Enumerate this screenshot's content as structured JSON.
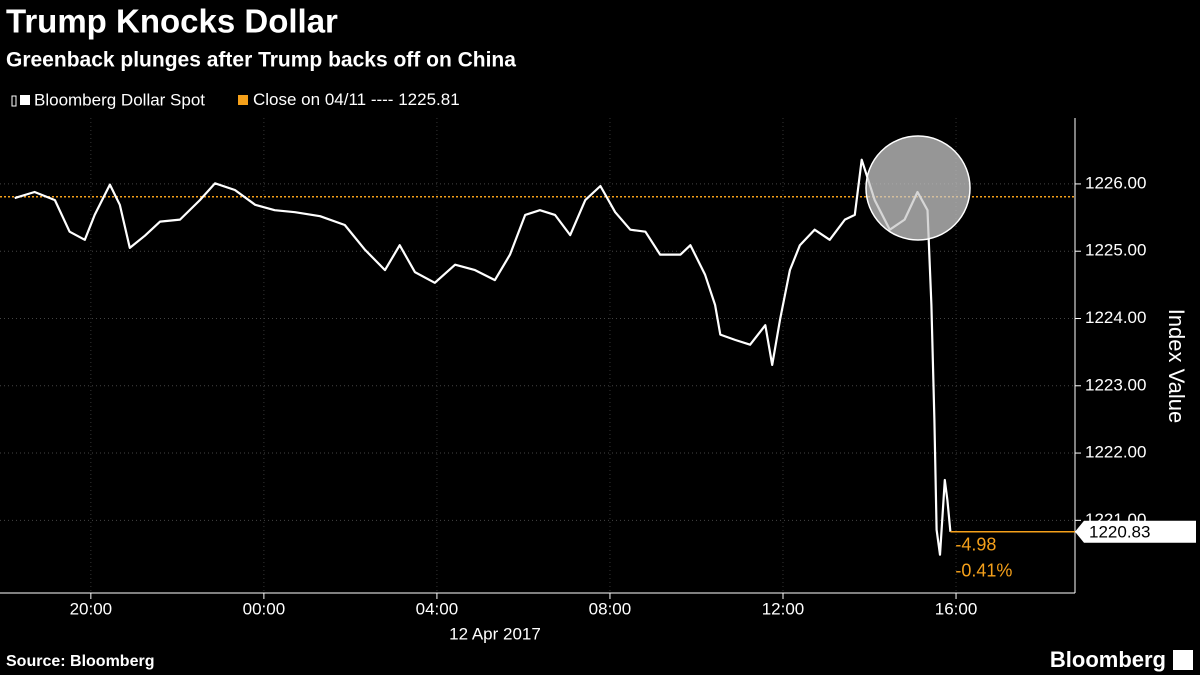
{
  "chart_data": {
    "type": "line",
    "title": "Trump Knocks Dollar",
    "subtitle": "Greenback plunges after Trump backs off on China",
    "y_axis_label": "Index Value",
    "x_sublabel": "12 Apr 2017",
    "source": "Source: Bloomberg",
    "brand": "Bloomberg",
    "annotations": [
      "-4.98",
      "-0.41%"
    ],
    "grid": true,
    "xlim": [
      17.9,
      42.75
    ],
    "xticks": [
      {
        "value": 20,
        "label": "20:00"
      },
      {
        "value": 24,
        "label": "00:00"
      },
      {
        "value": 28,
        "label": "04:00"
      },
      {
        "value": 32,
        "label": "08:00"
      },
      {
        "value": 36,
        "label": "12:00"
      },
      {
        "value": 40,
        "label": "16:00"
      }
    ],
    "ylim": [
      1219.92,
      1226.98
    ],
    "yticks": [
      {
        "value": 1221,
        "label": "1221.00"
      },
      {
        "value": 1222,
        "label": "1222.00"
      },
      {
        "value": 1223,
        "label": "1223.00"
      },
      {
        "value": 1224,
        "label": "1224.00"
      },
      {
        "value": 1225,
        "label": "1225.00"
      },
      {
        "value": 1226,
        "label": "1226.00"
      }
    ],
    "reference_line": {
      "name": "Close on 04/11 ----",
      "value": 1225.81,
      "color": "#f5a01a"
    },
    "x": [
      18.24,
      18.7,
      19.17,
      19.51,
      19.86,
      20.09,
      20.44,
      20.67,
      20.9,
      21.25,
      21.6,
      22.06,
      22.52,
      22.87,
      23.33,
      23.8,
      24.25,
      24.72,
      25.3,
      25.87,
      26.34,
      26.8,
      27.14,
      27.49,
      27.95,
      28.42,
      28.88,
      29.34,
      29.69,
      30.04,
      30.38,
      30.73,
      31.08,
      31.43,
      31.78,
      32.12,
      32.47,
      32.82,
      33.16,
      33.63,
      33.86,
      34.2,
      34.43,
      34.55,
      34.9,
      35.24,
      35.59,
      35.75,
      35.93,
      36.16,
      36.39,
      36.73,
      37.08,
      37.43,
      37.66,
      37.82,
      38.12,
      38.47,
      38.81,
      39.11,
      39.34,
      39.43,
      39.5,
      39.55,
      39.63,
      39.74,
      39.8,
      39.87
    ],
    "series": [
      {
        "name": "Bloomberg Dollar Spot",
        "color": "#ffffff",
        "values": [
          1225.79,
          1225.88,
          1225.76,
          1225.29,
          1225.17,
          1225.54,
          1225.99,
          1225.69,
          1225.05,
          1225.23,
          1225.44,
          1225.47,
          1225.76,
          1226.01,
          1225.91,
          1225.69,
          1225.61,
          1225.58,
          1225.52,
          1225.39,
          1225.02,
          1224.72,
          1225.09,
          1224.69,
          1224.53,
          1224.8,
          1224.72,
          1224.57,
          1224.95,
          1225.54,
          1225.61,
          1225.54,
          1225.24,
          1225.76,
          1225.97,
          1225.58,
          1225.32,
          1225.29,
          1224.95,
          1224.95,
          1225.09,
          1224.65,
          1224.2,
          1223.76,
          1223.68,
          1223.61,
          1223.9,
          1223.31,
          1223.98,
          1224.72,
          1225.09,
          1225.32,
          1225.17,
          1225.47,
          1225.54,
          1226.36,
          1225.76,
          1225.32,
          1225.47,
          1225.88,
          1225.61,
          1224.2,
          1222.49,
          1220.86,
          1220.49,
          1221.6,
          1221.3,
          1220.83
        ]
      }
    ]
  }
}
